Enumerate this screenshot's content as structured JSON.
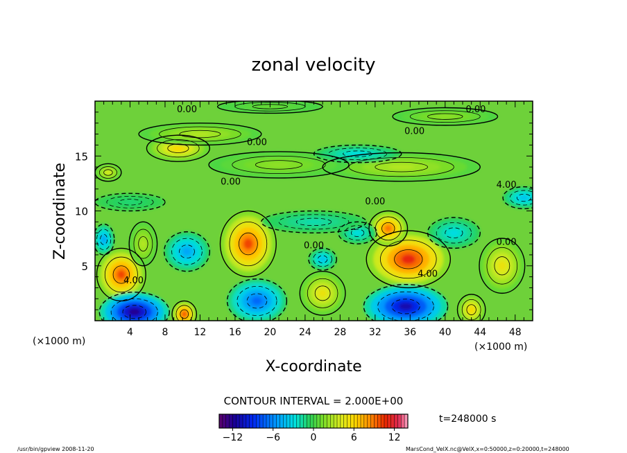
{
  "chart_data": {
    "type": "heatmap",
    "title": "zonal velocity",
    "xlabel": "X-coordinate",
    "ylabel": "Z-coordinate",
    "x_unit": "(×1000 m)",
    "y_unit": "(×1000 m)",
    "xlim": [
      0,
      50
    ],
    "ylim": [
      0,
      20
    ],
    "xticks": [
      "4",
      "8",
      "12",
      "16",
      "20",
      "24",
      "28",
      "32",
      "36",
      "40",
      "44",
      "48"
    ],
    "xtick_values": [
      4,
      8,
      12,
      16,
      20,
      24,
      28,
      32,
      36,
      40,
      44,
      48
    ],
    "yticks": [
      "5",
      "10",
      "15"
    ],
    "ytick_values": [
      5,
      10,
      15
    ],
    "contour_interval_label": "CONTOUR INTERVAL = 2.000E+00",
    "contour_labels": [
      {
        "text": "0.00",
        "x": 10.5,
        "z": 19.0
      },
      {
        "text": "0.00",
        "x": 43.5,
        "z": 19.0
      },
      {
        "text": "0.00",
        "x": 18.5,
        "z": 16.0
      },
      {
        "text": "0.00",
        "x": 36.5,
        "z": 17.0
      },
      {
        "text": "0.00",
        "x": 15.5,
        "z": 12.4
      },
      {
        "text": "4.00",
        "x": 47.0,
        "z": 12.1
      },
      {
        "text": "0.00",
        "x": 32.0,
        "z": 10.6
      },
      {
        "text": "0.00",
        "x": 25.0,
        "z": 6.6
      },
      {
        "text": "0.00",
        "x": 47.0,
        "z": 6.9
      },
      {
        "text": "4.00",
        "x": 4.4,
        "z": 3.4
      },
      {
        "text": "4.00",
        "x": 38.0,
        "z": 4.0
      }
    ],
    "features": [
      {
        "x": 3.0,
        "z": 4.2,
        "value": 10,
        "rx": 2.8,
        "rz": 2.4
      },
      {
        "x": 17.5,
        "z": 7.0,
        "value": 10,
        "rx": 3.2,
        "rz": 3.0
      },
      {
        "x": 35.8,
        "z": 5.6,
        "value": 11,
        "rx": 4.8,
        "rz": 2.6
      },
      {
        "x": 33.5,
        "z": 8.4,
        "value": 9,
        "rx": 2.2,
        "rz": 1.6
      },
      {
        "x": 10.2,
        "z": 0.6,
        "value": 10,
        "rx": 1.4,
        "rz": 1.2
      },
      {
        "x": 26.0,
        "z": 2.5,
        "value": 5,
        "rx": 2.6,
        "rz": 2.0
      },
      {
        "x": 46.5,
        "z": 5.0,
        "value": 5,
        "rx": 2.6,
        "rz": 2.5
      },
      {
        "x": 43.0,
        "z": 1.0,
        "value": 6,
        "rx": 1.6,
        "rz": 1.4
      },
      {
        "x": 9.5,
        "z": 15.7,
        "value": 6,
        "rx": 3.6,
        "rz": 1.2
      },
      {
        "x": 5.5,
        "z": 7.0,
        "value": 3,
        "rx": 1.6,
        "rz": 2.0
      },
      {
        "x": 4.5,
        "z": 0.8,
        "value": -12,
        "rx": 4.0,
        "rz": 1.8
      },
      {
        "x": 35.5,
        "z": 1.3,
        "value": -11,
        "rx": 4.8,
        "rz": 2.0
      },
      {
        "x": 18.5,
        "z": 1.8,
        "value": -7,
        "rx": 3.4,
        "rz": 2.0
      },
      {
        "x": 10.5,
        "z": 6.3,
        "value": -5,
        "rx": 2.6,
        "rz": 1.8
      },
      {
        "x": 1.0,
        "z": 7.4,
        "value": -5,
        "rx": 1.2,
        "rz": 1.4
      },
      {
        "x": 41.0,
        "z": 8.0,
        "value": -3,
        "rx": 3.0,
        "rz": 1.4
      },
      {
        "x": 49.0,
        "z": 11.2,
        "value": -4,
        "rx": 2.4,
        "rz": 1.0
      },
      {
        "x": 26.0,
        "z": 5.6,
        "value": -4,
        "rx": 1.6,
        "rz": 1.0
      },
      {
        "x": 30.0,
        "z": 8.0,
        "value": -3,
        "rx": 2.2,
        "rz": 1.0
      },
      {
        "x": 25.0,
        "z": 9.0,
        "value": -2,
        "rx": 6.0,
        "rz": 1.0
      },
      {
        "x": 12.0,
        "z": 17.0,
        "value": 3,
        "rx": 7.0,
        "rz": 1.0
      },
      {
        "x": 35.0,
        "z": 14.0,
        "value": 3,
        "rx": 9.0,
        "rz": 1.3
      },
      {
        "x": 21.0,
        "z": 14.2,
        "value": 2,
        "rx": 8.0,
        "rz": 1.2
      },
      {
        "x": 30.0,
        "z": 15.2,
        "value": -3,
        "rx": 5.0,
        "rz": 0.8
      },
      {
        "x": 40.0,
        "z": 18.6,
        "value": 2,
        "rx": 6.0,
        "rz": 0.8
      },
      {
        "x": 20.0,
        "z": 19.5,
        "value": 1,
        "rx": 6.0,
        "rz": 0.6
      },
      {
        "x": 4.0,
        "z": 10.8,
        "value": -1,
        "rx": 4.0,
        "rz": 0.8
      },
      {
        "x": 1.5,
        "z": 13.5,
        "value": 4,
        "rx": 1.5,
        "rz": 0.8
      }
    ],
    "colorbar": {
      "min": -14,
      "max": 14,
      "tick_labels": [
        "−12",
        "−6",
        "0",
        "6",
        "12"
      ],
      "tick_values": [
        -12,
        -6,
        0,
        6,
        12
      ]
    },
    "time_label": "t=248000 s"
  },
  "footer": {
    "left": "/usr/bin/gpview  2008-11-20",
    "right": "MarsCond_VelX.nc@VelX,x=0:50000,z=0:20000,t=248000"
  }
}
